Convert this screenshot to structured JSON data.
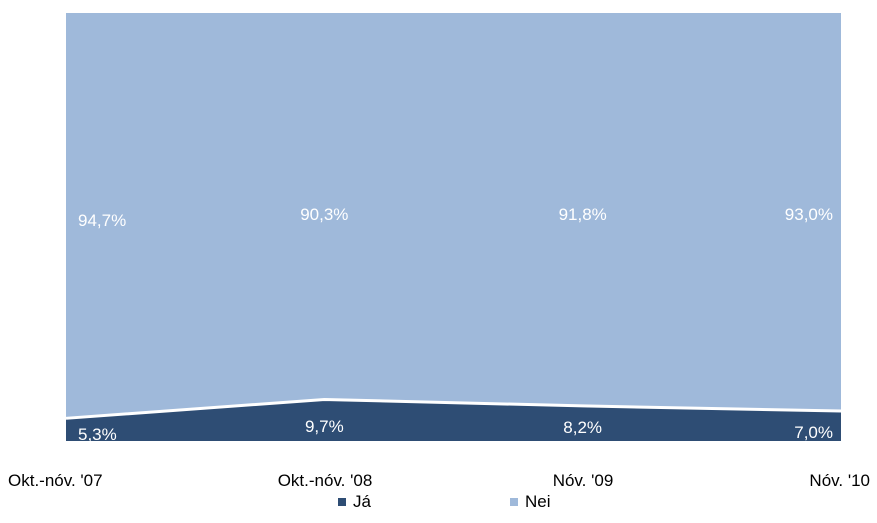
{
  "chart_data": {
    "type": "area",
    "stacked": true,
    "percent_stacked": true,
    "categories": [
      "Okt.-nóv. '07",
      "Okt.-nóv. '08",
      "Nóv. '09",
      "Nóv. '10"
    ],
    "series": [
      {
        "name": "Já",
        "values": [
          5.3,
          9.7,
          8.2,
          7.0
        ],
        "labels": [
          "5,3%",
          "9,7%",
          "8,2%",
          "7,0%"
        ],
        "color": "#2e4d74"
      },
      {
        "name": "Nei",
        "values": [
          94.7,
          90.3,
          91.8,
          93.0
        ],
        "labels": [
          "94,7%",
          "90,3%",
          "91,8%",
          "93,0%"
        ],
        "color": "#9fb9da"
      }
    ],
    "ylim": [
      0,
      100
    ],
    "grid": false,
    "legend": "bottom"
  }
}
